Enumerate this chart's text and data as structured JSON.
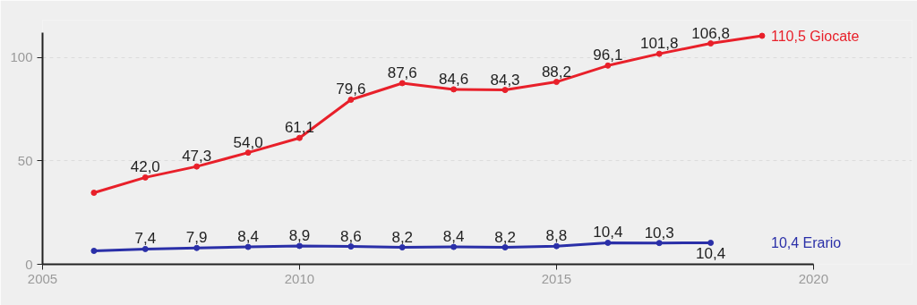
{
  "chart_data": {
    "type": "line",
    "x": [
      2006,
      2007,
      2008,
      2009,
      2010,
      2011,
      2012,
      2013,
      2014,
      2015,
      2016,
      2017,
      2018,
      2019
    ],
    "series": [
      {
        "name": "Giocate",
        "color": "#e8202a",
        "values": [
          34.6,
          42.0,
          47.3,
          54.0,
          61.1,
          79.6,
          87.6,
          84.6,
          84.3,
          88.2,
          96.1,
          101.8,
          106.8,
          110.5
        ],
        "value_labels": [
          null,
          "42,0",
          "47,3",
          "54,0",
          "61,1",
          "79,6",
          "87,6",
          "84,6",
          "84,3",
          "88,2",
          "96,1",
          "101,8",
          "106,8",
          "110,5"
        ]
      },
      {
        "name": "Erario",
        "color": "#2a2fa8",
        "values": [
          6.5,
          7.4,
          7.9,
          8.4,
          8.9,
          8.6,
          8.2,
          8.4,
          8.2,
          8.8,
          10.4,
          10.3,
          10.4,
          null
        ],
        "value_labels": [
          null,
          "7,4",
          "7,9",
          "8,4",
          "8,9",
          "8,6",
          "8,2",
          "8,4",
          "8,2",
          "8,8",
          "10,4",
          "10,3",
          "10,4",
          null
        ]
      }
    ],
    "xlim": [
      2005,
      2020
    ],
    "xticks": [
      2005,
      2010,
      2015,
      2020
    ],
    "ylim": [
      0,
      112
    ],
    "yticks": [
      0,
      50,
      100
    ],
    "grid": "y",
    "marker": "circle",
    "line_style": "solid"
  }
}
